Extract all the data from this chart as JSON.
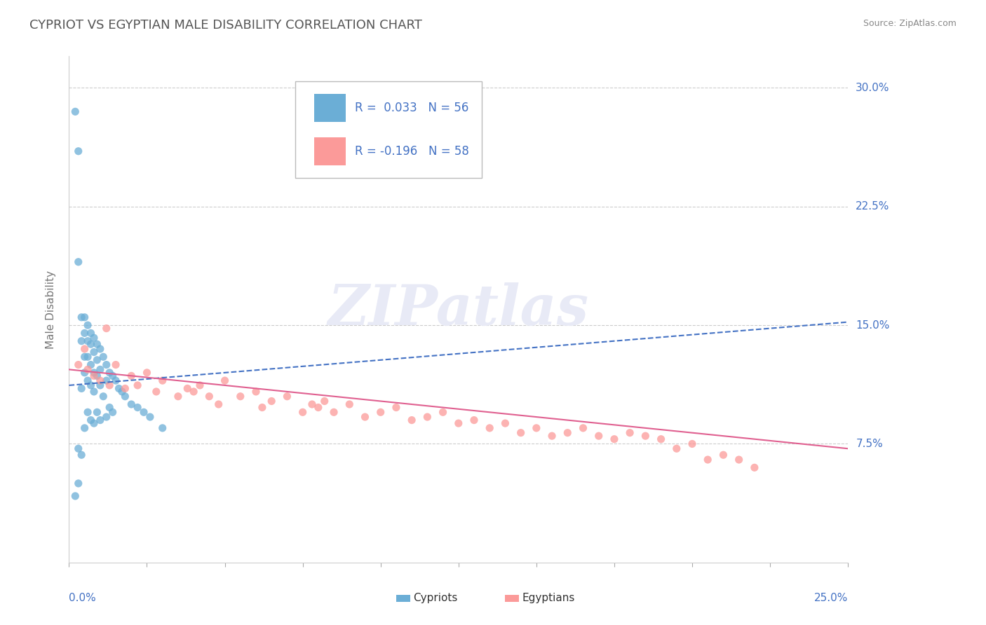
{
  "title": "CYPRIOT VS EGYPTIAN MALE DISABILITY CORRELATION CHART",
  "source": "Source: ZipAtlas.com",
  "ylabel": "Male Disability",
  "y_tick_labels": [
    "7.5%",
    "15.0%",
    "22.5%",
    "30.0%"
  ],
  "y_tick_values": [
    0.075,
    0.15,
    0.225,
    0.3
  ],
  "x_min": 0.0,
  "x_max": 0.25,
  "y_min": 0.0,
  "y_max": 0.32,
  "cypriot_color": "#6baed6",
  "egyptian_color": "#fb9a99",
  "cypriot_R": 0.033,
  "cypriot_N": 56,
  "egyptian_R": -0.196,
  "egyptian_N": 58,
  "cypriot_line_color": "#4472c4",
  "egyptian_line_color": "#e06090",
  "watermark_color": "#e8eaf6",
  "cypriot_x": [
    0.002,
    0.003,
    0.003,
    0.003,
    0.004,
    0.004,
    0.004,
    0.004,
    0.005,
    0.005,
    0.005,
    0.005,
    0.005,
    0.006,
    0.006,
    0.006,
    0.006,
    0.006,
    0.007,
    0.007,
    0.007,
    0.007,
    0.007,
    0.008,
    0.008,
    0.008,
    0.008,
    0.008,
    0.009,
    0.009,
    0.009,
    0.009,
    0.01,
    0.01,
    0.01,
    0.01,
    0.011,
    0.011,
    0.012,
    0.012,
    0.012,
    0.013,
    0.013,
    0.014,
    0.014,
    0.015,
    0.016,
    0.017,
    0.018,
    0.02,
    0.022,
    0.024,
    0.026,
    0.03,
    0.003,
    0.002
  ],
  "cypriot_y": [
    0.285,
    0.26,
    0.19,
    0.072,
    0.155,
    0.14,
    0.11,
    0.068,
    0.155,
    0.145,
    0.13,
    0.12,
    0.085,
    0.15,
    0.14,
    0.13,
    0.115,
    0.095,
    0.145,
    0.138,
    0.125,
    0.112,
    0.09,
    0.142,
    0.133,
    0.12,
    0.108,
    0.088,
    0.138,
    0.128,
    0.118,
    0.095,
    0.135,
    0.122,
    0.112,
    0.09,
    0.13,
    0.105,
    0.125,
    0.115,
    0.092,
    0.12,
    0.098,
    0.118,
    0.095,
    0.115,
    0.11,
    0.108,
    0.105,
    0.1,
    0.098,
    0.095,
    0.092,
    0.085,
    0.05,
    0.042
  ],
  "egyptian_x": [
    0.003,
    0.005,
    0.006,
    0.008,
    0.01,
    0.012,
    0.013,
    0.015,
    0.018,
    0.02,
    0.022,
    0.025,
    0.028,
    0.03,
    0.035,
    0.038,
    0.04,
    0.042,
    0.045,
    0.048,
    0.05,
    0.055,
    0.06,
    0.062,
    0.065,
    0.07,
    0.075,
    0.078,
    0.08,
    0.082,
    0.085,
    0.09,
    0.095,
    0.1,
    0.105,
    0.11,
    0.115,
    0.12,
    0.125,
    0.13,
    0.135,
    0.14,
    0.145,
    0.15,
    0.155,
    0.16,
    0.165,
    0.17,
    0.175,
    0.18,
    0.185,
    0.19,
    0.195,
    0.2,
    0.205,
    0.21,
    0.215,
    0.22
  ],
  "egyptian_y": [
    0.125,
    0.135,
    0.122,
    0.118,
    0.115,
    0.148,
    0.112,
    0.125,
    0.11,
    0.118,
    0.112,
    0.12,
    0.108,
    0.115,
    0.105,
    0.11,
    0.108,
    0.112,
    0.105,
    0.1,
    0.115,
    0.105,
    0.108,
    0.098,
    0.102,
    0.105,
    0.095,
    0.1,
    0.098,
    0.102,
    0.095,
    0.1,
    0.092,
    0.095,
    0.098,
    0.09,
    0.092,
    0.095,
    0.088,
    0.09,
    0.085,
    0.088,
    0.082,
    0.085,
    0.08,
    0.082,
    0.085,
    0.08,
    0.078,
    0.082,
    0.08,
    0.078,
    0.072,
    0.075,
    0.065,
    0.068,
    0.065,
    0.06
  ]
}
